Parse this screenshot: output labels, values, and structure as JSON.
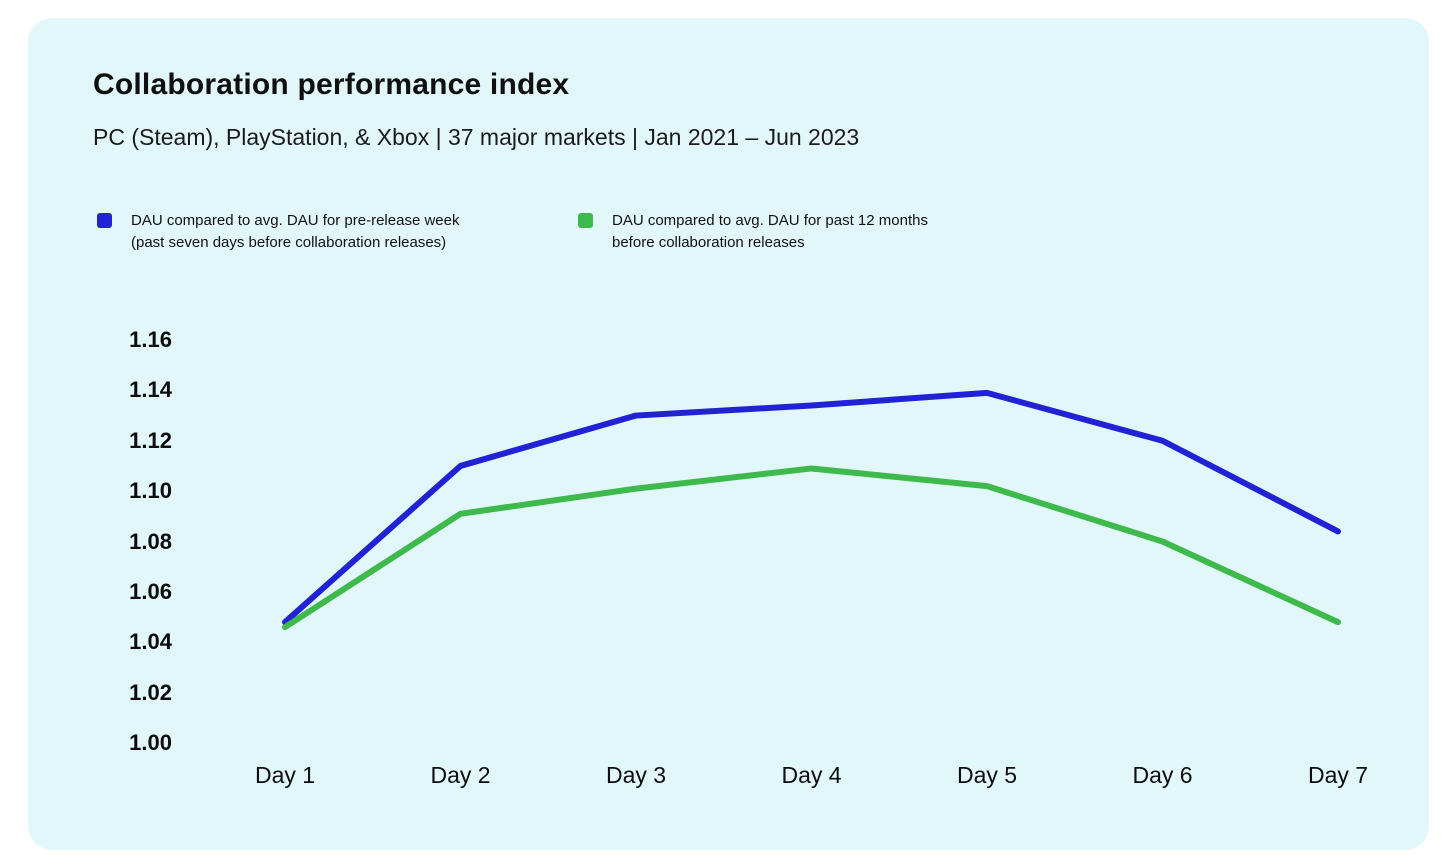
{
  "header": {
    "title": "Collaboration performance index",
    "subtitle": "PC (Steam), PlayStation, & Xbox | 37 major markets | Jan 2021 – Jun 2023"
  },
  "legend": {
    "items": [
      {
        "label_line1": "DAU compared to avg. DAU for pre-release week",
        "label_line2": "(past seven days before collaboration releases)",
        "color": "#2121d6"
      },
      {
        "label_line1": "DAU compared to avg. DAU for past 12 months",
        "label_line2": "before collaboration releases",
        "color": "#3eb94b"
      }
    ]
  },
  "chart_data": {
    "type": "line",
    "title": "Collaboration performance index",
    "subtitle": "PC (Steam), PlayStation, & Xbox | 37 major markets | Jan 2021 – Jun 2023",
    "categories": [
      "Day 1",
      "Day 2",
      "Day 3",
      "Day 4",
      "Day 5",
      "Day 6",
      "Day 7"
    ],
    "series": [
      {
        "name": "DAU compared to avg. DAU for pre-release week (past seven days before collaboration releases)",
        "color": "#2121d6",
        "values": [
          1.048,
          1.11,
          1.13,
          1.134,
          1.139,
          1.12,
          1.084
        ]
      },
      {
        "name": "DAU compared to avg. DAU for past 12 months before collaboration releases",
        "color": "#3eb94b",
        "values": [
          1.046,
          1.091,
          1.101,
          1.109,
          1.102,
          1.08,
          1.048
        ]
      }
    ],
    "xlabel": "",
    "ylabel": "",
    "ylim": [
      1.0,
      1.16
    ],
    "y_tick_labels": [
      "1.00",
      "1.02",
      "1.04",
      "1.06",
      "1.08",
      "1.10",
      "1.12",
      "1.14",
      "1.16"
    ],
    "grid": false,
    "legend_position": "top",
    "line_width": 6
  },
  "colors": {
    "page_background": "#ffffff",
    "panel_background": "#e2f7fa",
    "text": "#111111"
  }
}
